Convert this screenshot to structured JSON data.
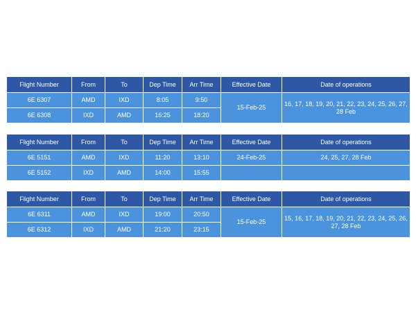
{
  "headers": {
    "flight_number": "Flight Number",
    "from": "From",
    "to": "To",
    "dep_time": "Dep Time",
    "arr_time": "Arr Time",
    "effective_date": "Effective Date",
    "date_of_operations": "Date of operations"
  },
  "tables": [
    {
      "rows": [
        {
          "flight": "6E 6307",
          "from": "AMD",
          "to": "IXD",
          "dep": "8:05",
          "arr": "9:50"
        },
        {
          "flight": "6E 6308",
          "from": "IXD",
          "to": "AMD",
          "dep": "16:25",
          "arr": "18:20"
        }
      ],
      "effective_date": "15-Feb-25",
      "date_of_operations": "16, 17, 18, 19, 20, 21, 22, 23, 24, 25, 26, 27, 28 Feb"
    },
    {
      "rows": [
        {
          "flight": "6E 5151",
          "from": "AMD",
          "to": "IXD",
          "dep": "11:20",
          "arr": "13:10",
          "effective_date": "24-Feb-25",
          "date_of_operations": "24, 25, 27, 28 Feb"
        },
        {
          "flight": "6E 5152",
          "from": "IXD",
          "to": "AMD",
          "dep": "14:00",
          "arr": "15:55",
          "effective_date": "",
          "date_of_operations": ""
        }
      ]
    },
    {
      "rows": [
        {
          "flight": "6E 6311",
          "from": "AMD",
          "to": "IXD",
          "dep": "19:00",
          "arr": "20:50"
        },
        {
          "flight": "6E 6312",
          "from": "IXD",
          "to": "AMD",
          "dep": "21:20",
          "arr": "23:15"
        }
      ],
      "effective_date": "15-Feb-25",
      "date_of_operations": "15, 16, 17, 18, 19, 20, 21, 22, 23, 24, 25, 26, 27, 28 Feb"
    }
  ]
}
